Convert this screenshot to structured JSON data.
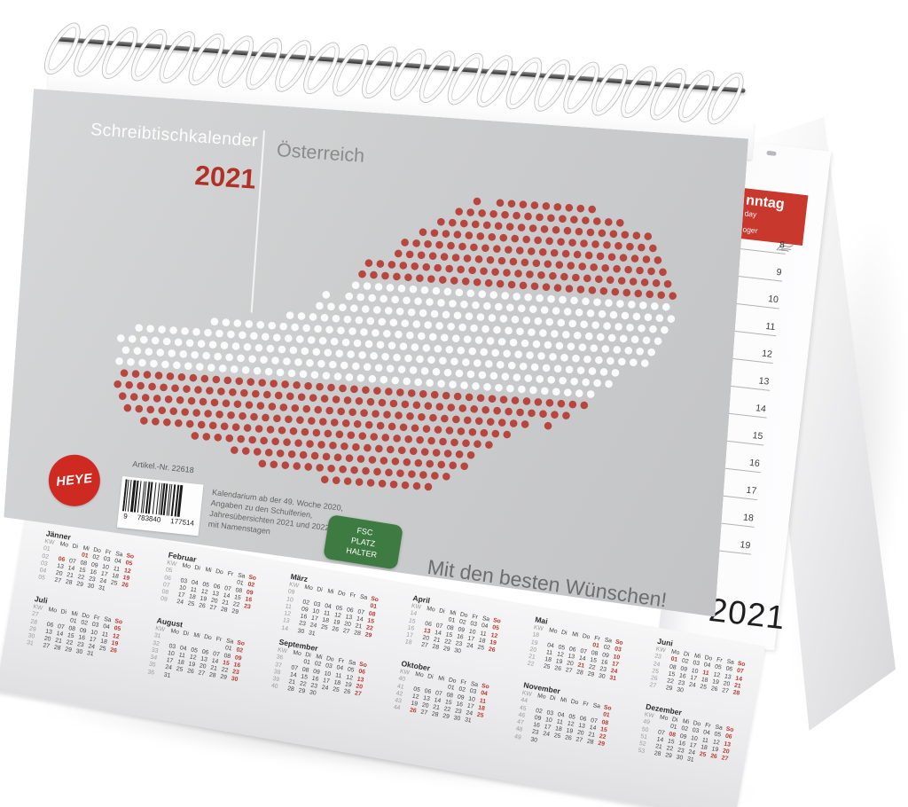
{
  "product": {
    "brand": "HEYE",
    "title": "Schreibtischkalender",
    "year": "2021",
    "region": "Österreich",
    "article_label": "Artikel.-Nr. 22618",
    "barcode_digits": [
      "9",
      "783840",
      "177514"
    ],
    "description_lines": [
      "Kalendarium ab der 49. Woche 2020,",
      "Angaben zu den Schulferien,",
      "Jahresübersichten 2021 und 2022,",
      "mit Namenstagen"
    ],
    "badge_lines": [
      "FSC",
      "PLATZ",
      "HALTER"
    ],
    "greeting": "Mit den besten Wünschen!",
    "cover_year": "2021"
  },
  "day_page": {
    "header_fragments": [
      "nntag",
      "day",
      "oger"
    ],
    "hours": [
      "8",
      "9",
      "10",
      "11",
      "12",
      "13",
      "14",
      "15",
      "16",
      "17",
      "18",
      "19"
    ]
  },
  "mini_calendar": {
    "kw_label": "KW",
    "weekday_header": [
      "Mo",
      "Di",
      "Mi",
      "Do",
      "Fr",
      "Sa",
      "So"
    ],
    "months": [
      {
        "name": "Jänner",
        "kw": [
          "01",
          "02",
          "03",
          "04",
          "05"
        ],
        "weeks": [
          [
            "",
            "",
            "01",
            "02",
            "03",
            "04",
            "05"
          ],
          [
            "06",
            "07",
            "08",
            "09",
            "10",
            "11",
            "12"
          ],
          [
            "13",
            "14",
            "15",
            "16",
            "17",
            "18",
            "19"
          ],
          [
            "20",
            "21",
            "22",
            "23",
            "24",
            "25",
            "26"
          ],
          [
            "27",
            "28",
            "29",
            "30",
            "31",
            "",
            ""
          ]
        ],
        "red": [
          "01",
          "05",
          "06",
          "12",
          "19",
          "26"
        ]
      },
      {
        "name": "Februar",
        "kw": [
          "05",
          "06",
          "07",
          "08",
          "09"
        ],
        "weeks": [
          [
            "",
            "",
            "",
            "",
            "",
            "01",
            "02"
          ],
          [
            "03",
            "04",
            "05",
            "06",
            "07",
            "08",
            "09"
          ],
          [
            "10",
            "11",
            "12",
            "13",
            "14",
            "15",
            "16"
          ],
          [
            "17",
            "18",
            "19",
            "20",
            "21",
            "22",
            "23"
          ],
          [
            "24",
            "25",
            "26",
            "27",
            "28",
            "29",
            ""
          ]
        ],
        "red": [
          "02",
          "09",
          "16",
          "23"
        ]
      },
      {
        "name": "März",
        "kw": [
          "09",
          "10",
          "11",
          "12",
          "13",
          "14"
        ],
        "weeks": [
          [
            "",
            "",
            "",
            "",
            "",
            "",
            "01"
          ],
          [
            "02",
            "03",
            "04",
            "05",
            "06",
            "07",
            "08"
          ],
          [
            "09",
            "10",
            "11",
            "12",
            "13",
            "14",
            "15"
          ],
          [
            "16",
            "17",
            "18",
            "19",
            "20",
            "21",
            "22"
          ],
          [
            "23",
            "24",
            "25",
            "26",
            "27",
            "28",
            "29"
          ],
          [
            "30",
            "31",
            "",
            "",
            "",
            "",
            ""
          ]
        ],
        "red": [
          "01",
          "08",
          "15",
          "22",
          "29"
        ]
      },
      {
        "name": "April",
        "kw": [
          "14",
          "15",
          "16",
          "17",
          "18"
        ],
        "weeks": [
          [
            "",
            "",
            "01",
            "02",
            "03",
            "04",
            "05"
          ],
          [
            "06",
            "07",
            "08",
            "09",
            "10",
            "11",
            "12"
          ],
          [
            "13",
            "14",
            "15",
            "16",
            "17",
            "18",
            "19"
          ],
          [
            "20",
            "21",
            "22",
            "23",
            "24",
            "25",
            "26"
          ],
          [
            "27",
            "28",
            "29",
            "30",
            "",
            "",
            ""
          ]
        ],
        "red": [
          "05",
          "12",
          "13",
          "19",
          "26"
        ]
      },
      {
        "name": "Mai",
        "kw": [
          "18",
          "19",
          "20",
          "21",
          "22"
        ],
        "weeks": [
          [
            "",
            "",
            "",
            "",
            "01",
            "02",
            "03"
          ],
          [
            "04",
            "05",
            "06",
            "07",
            "08",
            "09",
            "10"
          ],
          [
            "11",
            "12",
            "13",
            "14",
            "15",
            "16",
            "17"
          ],
          [
            "18",
            "19",
            "20",
            "21",
            "22",
            "23",
            "24"
          ],
          [
            "25",
            "26",
            "27",
            "28",
            "29",
            "30",
            "31"
          ]
        ],
        "red": [
          "01",
          "03",
          "10",
          "17",
          "21",
          "24",
          "31"
        ]
      },
      {
        "name": "Juni",
        "kw": [
          "23",
          "24",
          "25",
          "26",
          "27"
        ],
        "weeks": [
          [
            "01",
            "02",
            "03",
            "04",
            "05",
            "06",
            "07"
          ],
          [
            "08",
            "09",
            "10",
            "11",
            "12",
            "13",
            "14"
          ],
          [
            "15",
            "16",
            "17",
            "18",
            "19",
            "20",
            "21"
          ],
          [
            "22",
            "23",
            "24",
            "25",
            "26",
            "27",
            "28"
          ],
          [
            "29",
            "30",
            "",
            "",
            "",
            "",
            ""
          ]
        ],
        "red": [
          "01",
          "07",
          "11",
          "14",
          "21",
          "28"
        ]
      },
      {
        "name": "Juli",
        "kw": [
          "27",
          "28",
          "29",
          "30",
          "31"
        ],
        "weeks": [
          [
            "",
            "",
            "01",
            "02",
            "03",
            "04",
            "05"
          ],
          [
            "06",
            "07",
            "08",
            "09",
            "10",
            "11",
            "12"
          ],
          [
            "13",
            "14",
            "15",
            "16",
            "17",
            "18",
            "19"
          ],
          [
            "20",
            "21",
            "22",
            "23",
            "24",
            "25",
            "26"
          ],
          [
            "27",
            "28",
            "29",
            "30",
            "31",
            "",
            ""
          ]
        ],
        "red": [
          "05",
          "12",
          "19",
          "26"
        ]
      },
      {
        "name": "August",
        "kw": [
          "31",
          "32",
          "33",
          "34",
          "35",
          "36"
        ],
        "weeks": [
          [
            "",
            "",
            "",
            "",
            "",
            "01",
            "02"
          ],
          [
            "03",
            "04",
            "05",
            "06",
            "07",
            "08",
            "09"
          ],
          [
            "10",
            "11",
            "12",
            "13",
            "14",
            "15",
            "16"
          ],
          [
            "17",
            "18",
            "19",
            "20",
            "21",
            "22",
            "23"
          ],
          [
            "24",
            "25",
            "26",
            "27",
            "28",
            "29",
            "30"
          ],
          [
            "31",
            "",
            "",
            "",
            "",
            "",
            ""
          ]
        ],
        "red": [
          "02",
          "09",
          "15",
          "16",
          "23",
          "30"
        ]
      },
      {
        "name": "September",
        "kw": [
          "36",
          "37",
          "38",
          "39",
          "40"
        ],
        "weeks": [
          [
            "",
            "01",
            "02",
            "03",
            "04",
            "05",
            "06"
          ],
          [
            "07",
            "08",
            "09",
            "10",
            "11",
            "12",
            "13"
          ],
          [
            "14",
            "15",
            "16",
            "17",
            "18",
            "19",
            "20"
          ],
          [
            "21",
            "22",
            "23",
            "24",
            "25",
            "26",
            "27"
          ],
          [
            "28",
            "29",
            "30",
            "",
            "",
            "",
            ""
          ]
        ],
        "red": [
          "06",
          "13",
          "20",
          "27"
        ]
      },
      {
        "name": "Oktober",
        "kw": [
          "40",
          "41",
          "42",
          "43",
          "44"
        ],
        "weeks": [
          [
            "",
            "",
            "",
            "01",
            "02",
            "03",
            "04"
          ],
          [
            "05",
            "06",
            "07",
            "08",
            "09",
            "10",
            "11"
          ],
          [
            "12",
            "13",
            "14",
            "15",
            "16",
            "17",
            "18"
          ],
          [
            "19",
            "20",
            "21",
            "22",
            "23",
            "24",
            "25"
          ],
          [
            "26",
            "27",
            "28",
            "29",
            "30",
            "31",
            ""
          ]
        ],
        "red": [
          "04",
          "11",
          "18",
          "25",
          "26"
        ]
      },
      {
        "name": "November",
        "kw": [
          "44",
          "45",
          "46",
          "47",
          "48",
          "49"
        ],
        "weeks": [
          [
            "",
            "",
            "",
            "",
            "",
            "",
            "01"
          ],
          [
            "02",
            "03",
            "04",
            "05",
            "06",
            "07",
            "08"
          ],
          [
            "09",
            "10",
            "11",
            "12",
            "13",
            "14",
            "15"
          ],
          [
            "16",
            "17",
            "18",
            "19",
            "20",
            "21",
            "22"
          ],
          [
            "23",
            "24",
            "25",
            "26",
            "27",
            "28",
            "29"
          ],
          [
            "30",
            "",
            "",
            "",
            "",
            "",
            ""
          ]
        ],
        "red": [
          "01",
          "08",
          "15",
          "22",
          "29"
        ]
      },
      {
        "name": "Dezember",
        "kw": [
          "49",
          "50",
          "51",
          "52",
          "53"
        ],
        "weeks": [
          [
            "",
            "01",
            "02",
            "03",
            "04",
            "05",
            "06"
          ],
          [
            "07",
            "08",
            "09",
            "10",
            "11",
            "12",
            "13"
          ],
          [
            "14",
            "15",
            "16",
            "17",
            "18",
            "19",
            "20"
          ],
          [
            "21",
            "22",
            "23",
            "24",
            "25",
            "26",
            "27"
          ],
          [
            "28",
            "29",
            "30",
            "31",
            "",
            "",
            ""
          ]
        ],
        "red": [
          "06",
          "08",
          "13",
          "20",
          "25",
          "26",
          "27"
        ]
      }
    ]
  },
  "colors": {
    "accent_red": "#bb3a30",
    "heye_red": "#cf2a22",
    "fsc_green": "#3e7b42",
    "cover_gray": "#cbccce",
    "map_dot_red": "#b8463e",
    "map_dot_white": "#fbfbfb"
  }
}
